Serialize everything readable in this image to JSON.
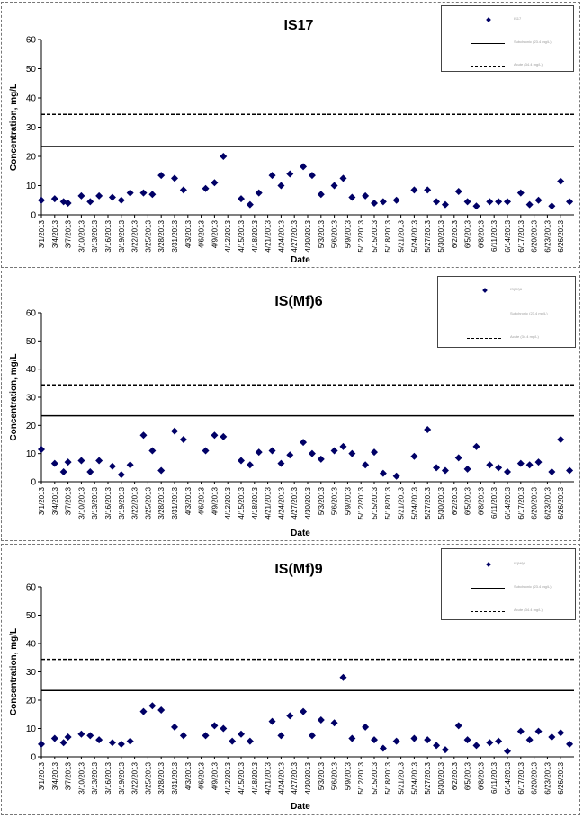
{
  "colors": {
    "marker": "#000066",
    "axis": "#000000",
    "frame": "#777777"
  },
  "chart_data": [
    {
      "type": "scatter",
      "title": "IS17",
      "xlabel": "Date",
      "ylabel": "Concentration, mg/L",
      "ylim": [
        0,
        60
      ],
      "yticks": [
        "0",
        "10",
        "20",
        "30",
        "40",
        "50",
        "60"
      ],
      "xlim": [
        "3/1/2013",
        "6/29/2013"
      ],
      "xticks": [
        "3/1/2013",
        "3/4/2013",
        "3/7/2013",
        "3/10/2013",
        "3/13/2013",
        "3/16/2013",
        "3/19/2013",
        "3/22/2013",
        "3/25/2013",
        "3/28/2013",
        "3/31/2013",
        "4/3/2013",
        "4/6/2013",
        "4/9/2013",
        "4/12/2013",
        "4/15/2013",
        "4/18/2013",
        "4/21/2013",
        "4/24/2013",
        "4/27/2013",
        "4/30/2013",
        "5/3/2013",
        "5/6/2013",
        "5/9/2013",
        "5/12/2013",
        "5/15/2013",
        "5/18/2013",
        "5/21/2013",
        "5/24/2013",
        "5/27/2013",
        "5/30/2013",
        "6/2/2013",
        "6/5/2013",
        "6/8/2013",
        "6/11/2013",
        "6/14/2013",
        "6/17/2013",
        "6/20/2013",
        "6/23/2013",
        "6/26/2013"
      ],
      "series": [
        {
          "name": "IS17",
          "points": [
            [
              "3/1/2013",
              5.0
            ],
            [
              "3/4/2013",
              5.5
            ],
            [
              "3/6/2013",
              4.5
            ],
            [
              "3/7/2013",
              4.0
            ],
            [
              "3/10/2013",
              6.5
            ],
            [
              "3/12/2013",
              4.5
            ],
            [
              "3/14/2013",
              6.5
            ],
            [
              "3/17/2013",
              6.0
            ],
            [
              "3/19/2013",
              5.0
            ],
            [
              "3/21/2013",
              7.5
            ],
            [
              "3/24/2013",
              7.5
            ],
            [
              "3/26/2013",
              7.0
            ],
            [
              "3/28/2013",
              13.5
            ],
            [
              "3/31/2013",
              12.5
            ],
            [
              "4/2/2013",
              8.5
            ],
            [
              "4/7/2013",
              9.0
            ],
            [
              "4/9/2013",
              11.0
            ],
            [
              "4/11/2013",
              20.0
            ],
            [
              "4/15/2013",
              5.5
            ],
            [
              "4/17/2013",
              3.5
            ],
            [
              "4/19/2013",
              7.5
            ],
            [
              "4/22/2013",
              13.5
            ],
            [
              "4/24/2013",
              10.0
            ],
            [
              "4/26/2013",
              14.0
            ],
            [
              "4/29/2013",
              16.5
            ],
            [
              "5/1/2013",
              13.5
            ],
            [
              "5/3/2013",
              7.0
            ],
            [
              "5/6/2013",
              10.0
            ],
            [
              "5/8/2013",
              12.5
            ],
            [
              "5/10/2013",
              6.0
            ],
            [
              "5/13/2013",
              6.5
            ],
            [
              "5/15/2013",
              4.0
            ],
            [
              "5/17/2013",
              4.5
            ],
            [
              "5/20/2013",
              5.0
            ],
            [
              "5/24/2013",
              8.5
            ],
            [
              "5/27/2013",
              8.5
            ],
            [
              "5/29/2013",
              4.5
            ],
            [
              "5/31/2013",
              3.5
            ],
            [
              "6/3/2013",
              8.0
            ],
            [
              "6/5/2013",
              4.5
            ],
            [
              "6/7/2013",
              3.0
            ],
            [
              "6/10/2013",
              4.5
            ],
            [
              "6/12/2013",
              4.5
            ],
            [
              "6/14/2013",
              4.5
            ],
            [
              "6/17/2013",
              7.5
            ],
            [
              "6/19/2013",
              3.5
            ],
            [
              "6/21/2013",
              5.0
            ],
            [
              "6/24/2013",
              3.0
            ],
            [
              "6/26/2013",
              11.5
            ],
            [
              "6/28/2013",
              4.5
            ]
          ]
        }
      ],
      "reference_lines": [
        {
          "value": 23.4,
          "style": "solid"
        },
        {
          "value": 34.4,
          "style": "dashed"
        }
      ],
      "legend": {
        "position": "top-right",
        "entries": [
          {
            "kind": "marker",
            "label": "IS17"
          },
          {
            "kind": "solid",
            "label": "Subchronic (23.4 mg/L)"
          },
          {
            "kind": "dashed",
            "label": "Acute (34.4 mg/L)"
          }
        ]
      }
    },
    {
      "type": "scatter",
      "title": "IS(Mf)6",
      "xlabel": "Date",
      "ylabel": "Concentration, mg/L",
      "ylim": [
        0,
        60
      ],
      "yticks": [
        "0",
        "10",
        "20",
        "30",
        "40",
        "50",
        "60"
      ],
      "xlim": [
        "3/1/2013",
        "6/29/2013"
      ],
      "xticks": [
        "3/1/2013",
        "3/4/2013",
        "3/7/2013",
        "3/10/2013",
        "3/13/2013",
        "3/16/2013",
        "3/19/2013",
        "3/22/2013",
        "3/25/2013",
        "3/28/2013",
        "3/31/2013",
        "4/3/2013",
        "4/6/2013",
        "4/9/2013",
        "4/12/2013",
        "4/15/2013",
        "4/18/2013",
        "4/21/2013",
        "4/24/2013",
        "4/27/2013",
        "4/30/2013",
        "5/3/2013",
        "5/6/2013",
        "5/9/2013",
        "5/12/2013",
        "5/15/2013",
        "5/18/2013",
        "5/21/2013",
        "5/24/2013",
        "5/27/2013",
        "5/30/2013",
        "6/2/2013",
        "6/5/2013",
        "6/8/2013",
        "6/11/2013",
        "6/14/2013",
        "6/17/2013",
        "6/20/2013",
        "6/23/2013",
        "6/26/2013"
      ],
      "series": [
        {
          "name": "IS(Mf)6",
          "points": [
            [
              "3/1/2013",
              11.5
            ],
            [
              "3/4/2013",
              6.5
            ],
            [
              "3/6/2013",
              3.5
            ],
            [
              "3/7/2013",
              7.0
            ],
            [
              "3/10/2013",
              7.5
            ],
            [
              "3/12/2013",
              3.5
            ],
            [
              "3/14/2013",
              7.5
            ],
            [
              "3/17/2013",
              5.5
            ],
            [
              "3/19/2013",
              2.5
            ],
            [
              "3/21/2013",
              6.0
            ],
            [
              "3/24/2013",
              16.5
            ],
            [
              "3/26/2013",
              11.0
            ],
            [
              "3/28/2013",
              4.0
            ],
            [
              "3/31/2013",
              18.0
            ],
            [
              "4/2/2013",
              15.0
            ],
            [
              "4/7/2013",
              11.0
            ],
            [
              "4/9/2013",
              16.5
            ],
            [
              "4/11/2013",
              16.0
            ],
            [
              "4/15/2013",
              7.5
            ],
            [
              "4/17/2013",
              6.0
            ],
            [
              "4/19/2013",
              10.5
            ],
            [
              "4/22/2013",
              11.0
            ],
            [
              "4/24/2013",
              6.5
            ],
            [
              "4/26/2013",
              9.5
            ],
            [
              "4/29/2013",
              14.0
            ],
            [
              "5/1/2013",
              10.0
            ],
            [
              "5/3/2013",
              8.0
            ],
            [
              "5/6/2013",
              11.0
            ],
            [
              "5/8/2013",
              12.5
            ],
            [
              "5/10/2013",
              10.0
            ],
            [
              "5/13/2013",
              6.0
            ],
            [
              "5/15/2013",
              10.5
            ],
            [
              "5/17/2013",
              3.0
            ],
            [
              "5/20/2013",
              2.0
            ],
            [
              "5/24/2013",
              9.0
            ],
            [
              "5/27/2013",
              18.5
            ],
            [
              "5/29/2013",
              5.0
            ],
            [
              "5/31/2013",
              4.0
            ],
            [
              "6/3/2013",
              8.5
            ],
            [
              "6/5/2013",
              4.5
            ],
            [
              "6/7/2013",
              12.5
            ],
            [
              "6/10/2013",
              6.0
            ],
            [
              "6/12/2013",
              5.0
            ],
            [
              "6/14/2013",
              3.5
            ],
            [
              "6/17/2013",
              6.5
            ],
            [
              "6/19/2013",
              6.0
            ],
            [
              "6/21/2013",
              7.0
            ],
            [
              "6/24/2013",
              3.5
            ],
            [
              "6/26/2013",
              15.0
            ],
            [
              "6/28/2013",
              4.0
            ]
          ]
        }
      ],
      "reference_lines": [
        {
          "value": 23.4,
          "style": "solid"
        },
        {
          "value": 34.4,
          "style": "dashed"
        }
      ],
      "legend": {
        "position": "top-right",
        "entries": [
          {
            "kind": "marker",
            "label": "IS(Mf)6"
          },
          {
            "kind": "solid",
            "label": "Subchronic (23.4 mg/L)"
          },
          {
            "kind": "dashed",
            "label": "Acute (34.4 mg/L)"
          }
        ]
      }
    },
    {
      "type": "scatter",
      "title": "IS(Mf)9",
      "xlabel": "Date",
      "ylabel": "Concentration, mg/L",
      "ylim": [
        0,
        60
      ],
      "yticks": [
        "0",
        "10",
        "20",
        "30",
        "40",
        "50",
        "60"
      ],
      "xlim": [
        "3/1/2013",
        "6/29/2013"
      ],
      "xticks": [
        "3/1/2013",
        "3/4/2013",
        "3/7/2013",
        "3/10/2013",
        "3/13/2013",
        "3/16/2013",
        "3/19/2013",
        "3/22/2013",
        "3/25/2013",
        "3/28/2013",
        "3/31/2013",
        "4/3/2013",
        "4/6/2013",
        "4/9/2013",
        "4/12/2013",
        "4/15/2013",
        "4/18/2013",
        "4/21/2013",
        "4/24/2013",
        "4/27/2013",
        "4/30/2013",
        "5/3/2013",
        "5/6/2013",
        "5/9/2013",
        "5/12/2013",
        "5/15/2013",
        "5/18/2013",
        "5/21/2013",
        "5/24/2013",
        "5/27/2013",
        "5/30/2013",
        "6/2/2013",
        "6/5/2013",
        "6/8/2013",
        "6/11/2013",
        "6/14/2013",
        "6/17/2013",
        "6/20/2013",
        "6/23/2013",
        "6/26/2013"
      ],
      "series": [
        {
          "name": "IS(Mf)9",
          "points": [
            [
              "3/1/2013",
              4.5
            ],
            [
              "3/4/2013",
              6.5
            ],
            [
              "3/6/2013",
              5.0
            ],
            [
              "3/7/2013",
              7.0
            ],
            [
              "3/10/2013",
              8.0
            ],
            [
              "3/12/2013",
              7.5
            ],
            [
              "3/14/2013",
              6.0
            ],
            [
              "3/17/2013",
              5.0
            ],
            [
              "3/19/2013",
              4.5
            ],
            [
              "3/21/2013",
              5.5
            ],
            [
              "3/24/2013",
              16.0
            ],
            [
              "3/26/2013",
              18.0
            ],
            [
              "3/28/2013",
              16.5
            ],
            [
              "3/31/2013",
              10.5
            ],
            [
              "4/2/2013",
              7.5
            ],
            [
              "4/7/2013",
              7.5
            ],
            [
              "4/9/2013",
              11.0
            ],
            [
              "4/11/2013",
              10.0
            ],
            [
              "4/13/2013",
              5.5
            ],
            [
              "4/15/2013",
              8.0
            ],
            [
              "4/17/2013",
              5.5
            ],
            [
              "4/22/2013",
              12.5
            ],
            [
              "4/24/2013",
              7.5
            ],
            [
              "4/26/2013",
              14.5
            ],
            [
              "4/29/2013",
              16.0
            ],
            [
              "5/1/2013",
              7.5
            ],
            [
              "5/3/2013",
              13.0
            ],
            [
              "5/6/2013",
              12.0
            ],
            [
              "5/8/2013",
              28.0
            ],
            [
              "5/10/2013",
              6.5
            ],
            [
              "5/13/2013",
              10.5
            ],
            [
              "5/15/2013",
              6.0
            ],
            [
              "5/17/2013",
              3.0
            ],
            [
              "5/20/2013",
              5.5
            ],
            [
              "5/24/2013",
              6.5
            ],
            [
              "5/27/2013",
              6.0
            ],
            [
              "5/29/2013",
              4.0
            ],
            [
              "5/31/2013",
              2.5
            ],
            [
              "6/3/2013",
              11.0
            ],
            [
              "6/5/2013",
              6.0
            ],
            [
              "6/7/2013",
              4.0
            ],
            [
              "6/10/2013",
              5.0
            ],
            [
              "6/12/2013",
              5.5
            ],
            [
              "6/14/2013",
              2.0
            ],
            [
              "6/17/2013",
              9.0
            ],
            [
              "6/19/2013",
              6.0
            ],
            [
              "6/21/2013",
              9.0
            ],
            [
              "6/24/2013",
              7.0
            ],
            [
              "6/26/2013",
              8.5
            ],
            [
              "6/28/2013",
              4.5
            ]
          ]
        }
      ],
      "reference_lines": [
        {
          "value": 23.4,
          "style": "solid"
        },
        {
          "value": 34.4,
          "style": "dashed"
        }
      ],
      "legend": {
        "position": "top-right",
        "entries": [
          {
            "kind": "marker",
            "label": "IS(Mf)9"
          },
          {
            "kind": "solid",
            "label": "Subchronic (23.4 mg/L)"
          },
          {
            "kind": "dashed",
            "label": "Acute (34.4 mg/L)"
          }
        ]
      }
    }
  ]
}
